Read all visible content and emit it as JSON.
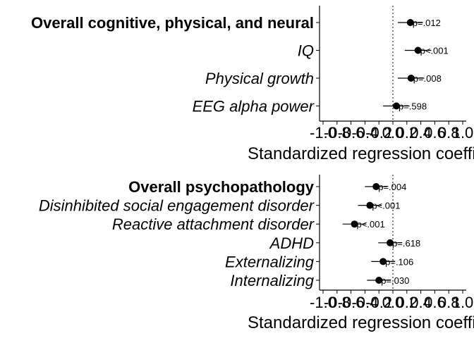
{
  "chart_data": [
    {
      "type": "scatter",
      "xlabel": "Standardized regression coefficient",
      "xlim": [
        -1.0,
        1.0
      ],
      "xticks": [
        "-1.0",
        "-0.8",
        "-0.6",
        "-0.4",
        "-0.2",
        "0.0",
        "0.2",
        "0.4",
        "0.6",
        "0.8",
        "1.0"
      ],
      "reference_line": 0.0,
      "categories": [
        {
          "label": "Overall cognitive, physical, and neural",
          "style": "bold",
          "estimate": 0.25,
          "ci": [
            0.07,
            0.43
          ],
          "p": "p=.012"
        },
        {
          "label": "IQ",
          "style": "italic",
          "estimate": 0.36,
          "ci": [
            0.17,
            0.55
          ],
          "p": "p<.001"
        },
        {
          "label": "Physical growth",
          "style": "italic",
          "estimate": 0.26,
          "ci": [
            0.07,
            0.45
          ],
          "p": "p=.008"
        },
        {
          "label": "EEG alpha power",
          "style": "italic",
          "estimate": 0.05,
          "ci": [
            -0.14,
            0.24
          ],
          "p": "p=.598"
        }
      ]
    },
    {
      "type": "scatter",
      "xlabel": "Standardized regression coefficient",
      "xlim": [
        -1.0,
        1.0
      ],
      "xticks": [
        "-1.0",
        "-0.8",
        "-0.6",
        "-0.4",
        "-0.2",
        "0.0",
        "0.2",
        "0.4",
        "0.6",
        "0.8",
        "1.0"
      ],
      "reference_line": 0.0,
      "categories": [
        {
          "label": "Overall psychopathology",
          "style": "bold",
          "estimate": -0.24,
          "ci": [
            -0.4,
            -0.08
          ],
          "p": "p=.004"
        },
        {
          "label": "Disinhibited social engagement disorder",
          "style": "italic",
          "estimate": -0.33,
          "ci": [
            -0.5,
            -0.16
          ],
          "p": "p<.001"
        },
        {
          "label": "Reactive attachment disorder",
          "style": "italic",
          "estimate": -0.55,
          "ci": [
            -0.72,
            -0.38
          ],
          "p": "p<.001"
        },
        {
          "label": "ADHD",
          "style": "italic",
          "estimate": -0.04,
          "ci": [
            -0.21,
            0.13
          ],
          "p": "p=.618"
        },
        {
          "label": "Externalizing",
          "style": "italic",
          "estimate": -0.14,
          "ci": [
            -0.31,
            0.03
          ],
          "p": "p=.106"
        },
        {
          "label": "Internalizing",
          "style": "italic",
          "estimate": -0.2,
          "ci": [
            -0.37,
            -0.03
          ],
          "p": "p=.030"
        }
      ]
    }
  ]
}
